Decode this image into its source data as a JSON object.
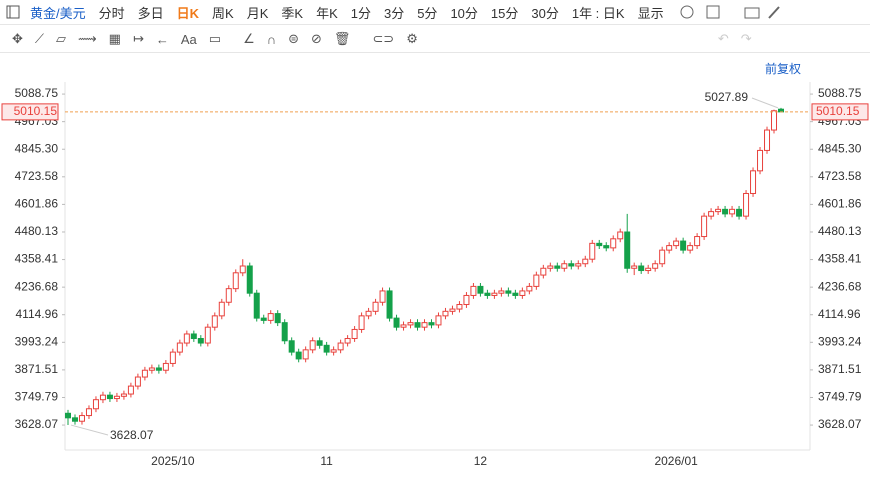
{
  "toolbar": {
    "symbol": "黄金/美元",
    "periods": [
      "分时",
      "多日",
      "日K",
      "周K",
      "月K",
      "季K",
      "年K",
      "1分",
      "3分",
      "5分",
      "10分",
      "15分",
      "30分"
    ],
    "range": "1年 : 日K",
    "display": "显示"
  },
  "drawing_tools": {
    "text_tool": "Aa"
  },
  "adjust": "前复权",
  "chart_data": {
    "type": "candlestick",
    "categories": [
      null,
      null,
      null,
      null,
      null,
      null,
      null,
      null,
      null,
      null,
      null,
      null,
      null,
      null,
      null,
      "2025/10",
      null,
      null,
      null,
      null,
      null,
      null,
      null,
      null,
      null,
      null,
      null,
      null,
      null,
      null,
      null,
      null,
      null,
      null,
      null,
      null,
      null,
      "11",
      null,
      null,
      null,
      null,
      null,
      null,
      null,
      null,
      null,
      null,
      null,
      null,
      null,
      null,
      null,
      null,
      null,
      null,
      null,
      null,
      null,
      "12",
      null,
      null,
      null,
      null,
      null,
      null,
      null,
      null,
      null,
      null,
      null,
      null,
      null,
      null,
      null,
      null,
      null,
      null,
      null,
      null,
      null,
      null,
      null,
      null,
      null,
      null,
      null,
      "2026/01",
      null,
      null,
      null,
      null,
      null,
      null,
      null,
      null,
      null,
      null,
      null,
      null,
      null,
      null,
      null
    ],
    "open": [
      3680,
      3660,
      3645,
      3670,
      3700,
      3740,
      3760,
      3745,
      3755,
      3765,
      3800,
      3840,
      3870,
      3880,
      3870,
      3900,
      3950,
      3990,
      4030,
      4010,
      3990,
      4060,
      4110,
      4170,
      4230,
      4300,
      4330,
      4210,
      4100,
      4090,
      4120,
      4080,
      4000,
      3950,
      3920,
      3960,
      4000,
      3980,
      3950,
      3960,
      3990,
      4010,
      4050,
      4110,
      4130,
      4170,
      4220,
      4100,
      4060,
      4070,
      4080,
      4060,
      4080,
      4070,
      4110,
      4130,
      4140,
      4160,
      4200,
      4240,
      4210,
      4200,
      4210,
      4220,
      4210,
      4200,
      4220,
      4240,
      4290,
      4320,
      4330,
      4320,
      4340,
      4330,
      4340,
      4360,
      4430,
      4420,
      4410,
      4450,
      4480,
      4320,
      4330,
      4310,
      4320,
      4340,
      4400,
      4420,
      4440,
      4400,
      4420,
      4460,
      4550,
      4570,
      4580,
      4560,
      4580,
      4550,
      4650,
      4750,
      4840,
      4930,
      5022
    ],
    "high": [
      3695,
      3675,
      3685,
      3715,
      3755,
      3775,
      3775,
      3770,
      3780,
      3815,
      3855,
      3885,
      3895,
      3895,
      3915,
      3965,
      4005,
      4045,
      4045,
      4025,
      4075,
      4125,
      4185,
      4245,
      4315,
      4360,
      4345,
      4225,
      4115,
      4135,
      4135,
      4095,
      4015,
      3965,
      3975,
      4015,
      4015,
      3995,
      3975,
      4005,
      4025,
      4065,
      4125,
      4145,
      4185,
      4235,
      4235,
      4115,
      4085,
      4095,
      4095,
      4095,
      4095,
      4125,
      4145,
      4155,
      4175,
      4215,
      4255,
      4255,
      4225,
      4225,
      4235,
      4235,
      4225,
      4235,
      4255,
      4305,
      4335,
      4345,
      4345,
      4355,
      4355,
      4355,
      4375,
      4445,
      4445,
      4435,
      4465,
      4495,
      4560,
      4345,
      4345,
      4335,
      4355,
      4415,
      4435,
      4455,
      4455,
      4435,
      4475,
      4565,
      4585,
      4595,
      4595,
      4595,
      4595,
      4665,
      4765,
      4855,
      4945,
      5020,
      5027.89
    ],
    "low": [
      3628.07,
      3630,
      3630,
      3655,
      3685,
      3725,
      3730,
      3730,
      3740,
      3750,
      3785,
      3825,
      3855,
      3855,
      3855,
      3885,
      3935,
      3975,
      3995,
      3975,
      3975,
      4045,
      4095,
      4155,
      4215,
      4285,
      4195,
      4085,
      4075,
      4075,
      4065,
      3985,
      3935,
      3905,
      3905,
      3945,
      3965,
      3935,
      3935,
      3945,
      3975,
      3995,
      4035,
      4095,
      4115,
      4155,
      4085,
      4045,
      4045,
      4055,
      4045,
      4045,
      4055,
      4055,
      4095,
      4115,
      4125,
      4145,
      4185,
      4195,
      4185,
      4185,
      4195,
      4195,
      4185,
      4185,
      4205,
      4225,
      4275,
      4305,
      4305,
      4305,
      4315,
      4315,
      4325,
      4345,
      4405,
      4395,
      4395,
      4435,
      4300,
      4290,
      4295,
      4295,
      4305,
      4325,
      4385,
      4405,
      4385,
      4385,
      4405,
      4445,
      4535,
      4555,
      4545,
      4545,
      4535,
      4535,
      4635,
      4735,
      4825,
      4915,
      5008
    ],
    "close": [
      3660,
      3645,
      3670,
      3700,
      3740,
      3760,
      3745,
      3755,
      3765,
      3800,
      3840,
      3870,
      3880,
      3870,
      3900,
      3950,
      3990,
      4030,
      4010,
      3990,
      4060,
      4110,
      4170,
      4230,
      4300,
      4330,
      4210,
      4100,
      4090,
      4120,
      4080,
      4000,
      3950,
      3920,
      3960,
      4000,
      3980,
      3950,
      3960,
      3990,
      4010,
      4050,
      4110,
      4130,
      4170,
      4220,
      4100,
      4060,
      4070,
      4080,
      4060,
      4080,
      4070,
      4110,
      4130,
      4140,
      4160,
      4200,
      4240,
      4210,
      4200,
      4210,
      4220,
      4210,
      4200,
      4220,
      4240,
      4290,
      4320,
      4330,
      4320,
      4340,
      4330,
      4340,
      4360,
      4430,
      4420,
      4410,
      4450,
      4480,
      4320,
      4330,
      4310,
      4320,
      4340,
      4400,
      4420,
      4440,
      4400,
      4420,
      4460,
      4550,
      4570,
      4580,
      4560,
      4580,
      4550,
      4650,
      4750,
      4840,
      4930,
      5015,
      5010.15
    ],
    "up_color": "#e8413c",
    "down_color": "#14a14a",
    "price_line_color": "#f0a050",
    "last_price": 5010.15,
    "ylim": [
      3518,
      5142
    ],
    "yticks": [
      3628.07,
      3749.79,
      3871.51,
      3993.24,
      4114.96,
      4236.68,
      4358.41,
      4480.13,
      4601.86,
      4723.58,
      {
        "value": 4845.3,
        "label": "4845.30"
      },
      4967.03,
      5088.75
    ]
  }
}
